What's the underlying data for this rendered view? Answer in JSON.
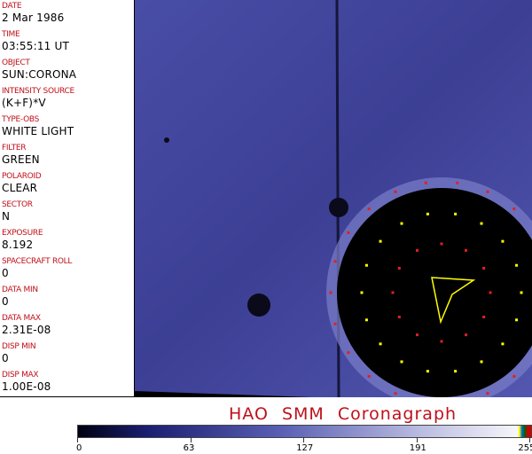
{
  "header": {
    "fields": [
      {
        "label": "DATE",
        "value": "2 Mar 1986"
      },
      {
        "label": "TIME",
        "value": "03:55:11 UT"
      },
      {
        "label": "OBJECT",
        "value": "SUN:CORONA"
      },
      {
        "label": "INTENSITY SOURCE",
        "value": "(K+F)*V"
      },
      {
        "label": "TYPE-OBS",
        "value": "WHITE LIGHT"
      },
      {
        "label": "FILTER",
        "value": "GREEN"
      },
      {
        "label": "POLAROID",
        "value": "CLEAR"
      },
      {
        "label": "SECTOR",
        "value": "N"
      },
      {
        "label": "EXPOSURE",
        "value": "8.192"
      },
      {
        "label": "SPACECRAFT ROLL",
        "value": "0"
      },
      {
        "label": "DATA MIN",
        "value": "0"
      },
      {
        "label": "DATA MAX",
        "value": "2.31E-08"
      },
      {
        "label": "DISP MIN",
        "value": "0"
      },
      {
        "label": "DISP MAX",
        "value": "1.00E-08"
      }
    ]
  },
  "title": "HAO  SMM Coronagraph",
  "colorbar": {
    "ticks": [
      "0",
      "63",
      "127",
      "191",
      "255"
    ],
    "colors": {
      "low": "#000010",
      "mid": "#5a60b4",
      "high": "#f6f6fa"
    }
  }
}
